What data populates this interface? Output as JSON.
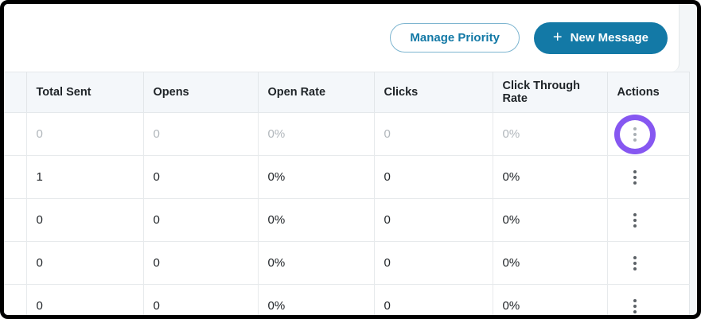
{
  "toolbar": {
    "manage_priority_label": "Manage Priority",
    "new_message_label": "New Message",
    "plus_icon": "+"
  },
  "table": {
    "headers": [
      "Total Sent",
      "Opens",
      "Open Rate",
      "Clicks",
      "Click Through Rate",
      "Actions"
    ],
    "rows": [
      {
        "state": "muted",
        "cells": [
          "0",
          "0",
          "0%",
          "0",
          "0%"
        ]
      },
      {
        "state": "normal",
        "cells": [
          "1",
          "0",
          "0%",
          "0",
          "0%"
        ]
      },
      {
        "state": "normal",
        "cells": [
          "0",
          "0",
          "0%",
          "0",
          "0%"
        ]
      },
      {
        "state": "normal",
        "cells": [
          "0",
          "0",
          "0%",
          "0",
          "0%"
        ]
      },
      {
        "state": "normal",
        "cells": [
          "0",
          "0",
          "0%",
          "0",
          "0%"
        ]
      }
    ]
  },
  "annotation": {
    "type": "highlight-circle",
    "target": "first-row-actions-menu",
    "color": "#8657f1"
  },
  "colors": {
    "accent_teal": "#1379a6",
    "header_bg": "#f4f7fa",
    "muted_text": "#b0b6bb",
    "frame_border": "#000000"
  }
}
